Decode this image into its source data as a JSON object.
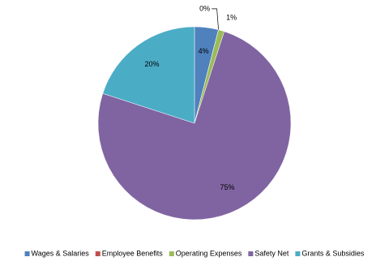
{
  "chart_data": {
    "type": "pie",
    "categories": [
      "Wages & Salaries",
      "Employee Benefits",
      "Operating Expenses",
      "Safety Net",
      "Grants & Subsidies"
    ],
    "values": [
      4,
      0,
      1,
      75,
      20
    ],
    "value_labels": [
      "4%",
      "0%",
      "1%",
      "75%",
      "20%"
    ],
    "colors": [
      "#4f81bd",
      "#c0504d",
      "#9bbb59",
      "#8064a2",
      "#4bacc6"
    ],
    "legend": "bottom"
  }
}
